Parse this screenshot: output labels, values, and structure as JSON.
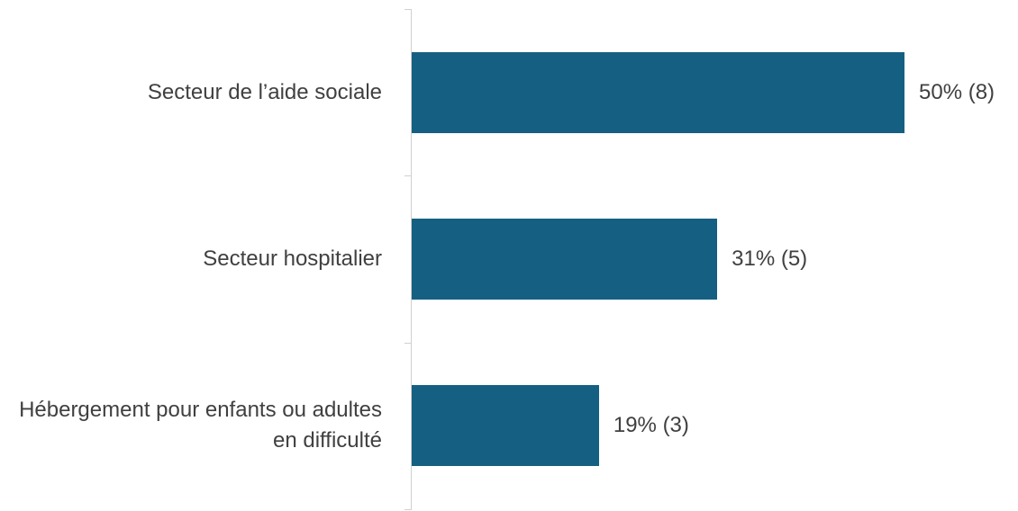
{
  "chart_data": {
    "type": "bar",
    "orientation": "horizontal",
    "categories": [
      "Secteur de l’aide sociale",
      "Secteur hospitalier",
      "Hébergement pour enfants ou adultes en difficulté"
    ],
    "values": [
      50,
      31,
      19
    ],
    "value_labels": [
      "50% (8)",
      "31% (5)",
      "19% (3)"
    ],
    "color": "#156082"
  }
}
